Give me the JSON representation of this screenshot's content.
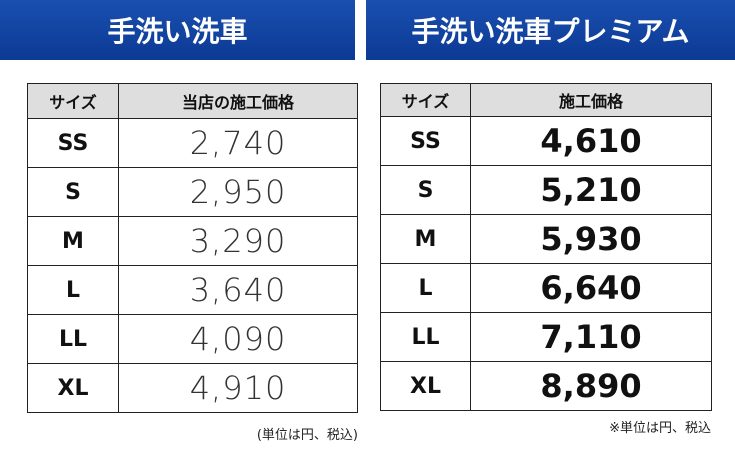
{
  "left": {
    "title": "手洗い洗車",
    "table": {
      "header": [
        "サイズ",
        "当店の施工価格"
      ],
      "rows": [
        [
          "SS",
          "2,740"
        ],
        [
          "S",
          "2,950"
        ],
        [
          "M",
          "3,290"
        ],
        [
          "L",
          "3,640"
        ],
        [
          "LL",
          "4,090"
        ],
        [
          "XL",
          "4,910"
        ]
      ]
    },
    "note": "(単位は円、税込)"
  },
  "right": {
    "title": "手洗い洗車プレミアム",
    "table": {
      "header": [
        "サイズ",
        "施工価格"
      ],
      "rows": [
        [
          "SS",
          "4,610"
        ],
        [
          "S",
          "5,210"
        ],
        [
          "M",
          "5,930"
        ],
        [
          "L",
          "6,640"
        ],
        [
          "LL",
          "7,110"
        ],
        [
          "XL",
          "8,890"
        ]
      ]
    },
    "note": "※単位は円、税込"
  }
}
